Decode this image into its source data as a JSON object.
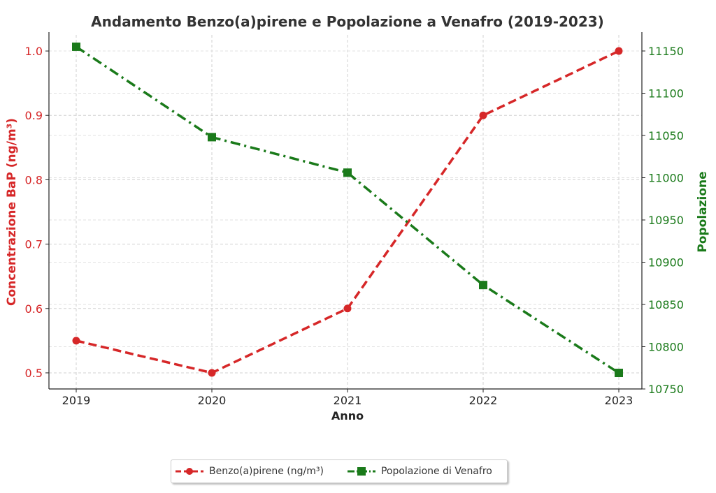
{
  "chart_data": {
    "type": "line",
    "title": "Andamento Benzo(a)pirene e Popolazione a Venafro (2019-2023)",
    "xlabel": "Anno",
    "x": [
      "2019",
      "2020",
      "2021",
      "2022",
      "2023"
    ],
    "y_left": {
      "label": "Concentrazione BaP (ng/m³)",
      "ticks": [
        "0.5",
        "0.6",
        "0.7",
        "0.8",
        "0.9",
        "1.0"
      ],
      "range": [
        0.475,
        1.025
      ],
      "color": "#d62728"
    },
    "y_right": {
      "label": "Popolazione",
      "ticks": [
        "10750",
        "10800",
        "10850",
        "10900",
        "10950",
        "11000",
        "11050",
        "11100",
        "11150"
      ],
      "range": [
        10750,
        11169
      ],
      "color": "#1a7a1a"
    },
    "series": [
      {
        "name": "Benzo(a)pirene (ng/m³)",
        "axis": "left",
        "values": [
          0.55,
          0.5,
          0.6,
          0.9,
          1.0
        ],
        "color": "#d62728",
        "style": "dashed",
        "marker": "circle"
      },
      {
        "name": "Popolazione di Venafro",
        "axis": "right",
        "values": [
          11155,
          11048,
          11006,
          10873,
          10769
        ],
        "color": "#1a7a1a",
        "style": "dashdot",
        "marker": "square"
      }
    ],
    "grid": true,
    "legend": "bottom-center"
  }
}
